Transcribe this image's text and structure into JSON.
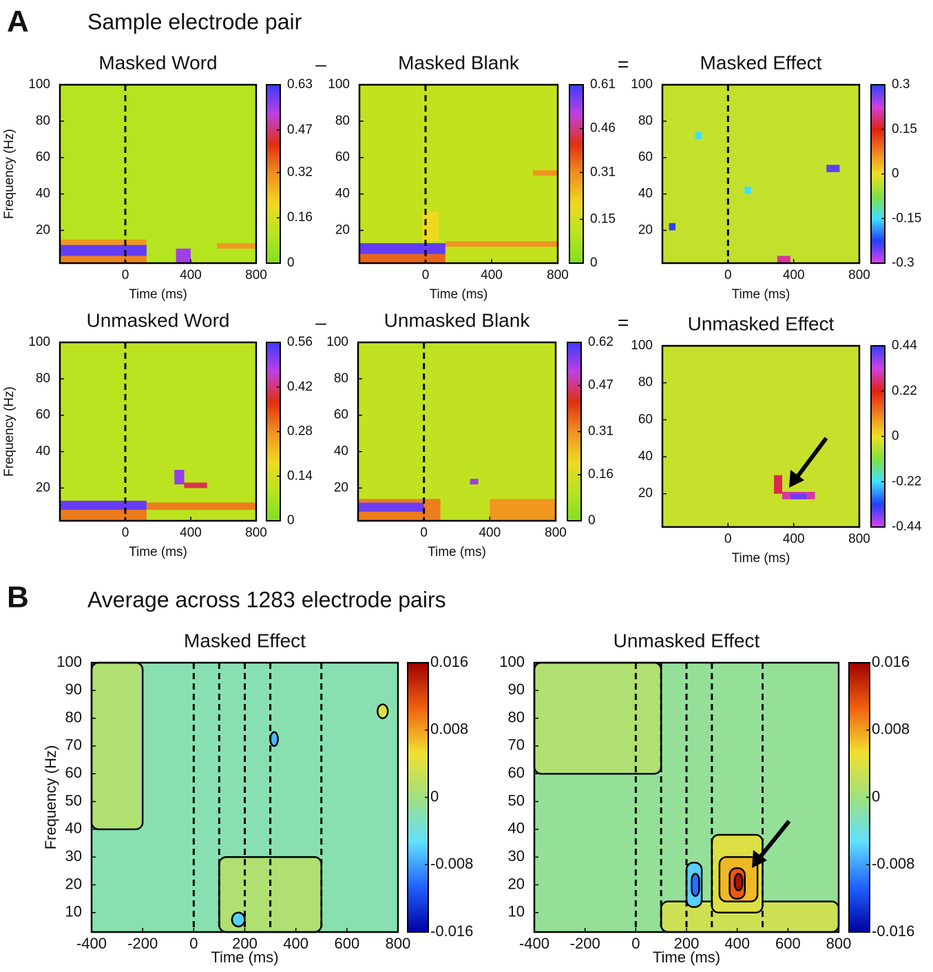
{
  "panels": [
    {
      "label": "A",
      "title": "Sample electrode pair"
    },
    {
      "label": "B",
      "title": "Average across 1283 electrode pairs"
    }
  ],
  "operators": [
    "–",
    "=",
    "–",
    "="
  ],
  "chart_data": [
    {
      "type": "heatmap",
      "title": "Masked Word",
      "xlabel": "Time (ms)",
      "ylabel": "Frequency (Hz)",
      "xlim": [
        -400,
        800
      ],
      "ylim": [
        2,
        100
      ],
      "xticks": [
        0,
        400,
        800
      ],
      "yticks": [
        20,
        40,
        60,
        80,
        100
      ],
      "vlines": [
        0
      ],
      "colormap": [
        "#80e020",
        "#b8e420",
        "#f0d820",
        "#f09020",
        "#e03010",
        "#c040e0",
        "#3c3cff"
      ],
      "clim": [
        0,
        0.63
      ],
      "cticks": [
        0,
        0.16,
        0.32,
        0.47,
        0.63
      ],
      "background": 0.1,
      "regions": [
        {
          "t": [
            -400,
            130
          ],
          "f": [
            2,
            6
          ],
          "value": 0.33
        },
        {
          "t": [
            -400,
            130
          ],
          "f": [
            12,
            15
          ],
          "value": 0.3
        },
        {
          "t": [
            -400,
            130
          ],
          "f": [
            6,
            12
          ],
          "value": 0.6
        },
        {
          "t": [
            310,
            400
          ],
          "f": [
            2,
            10
          ],
          "value": 0.55
        },
        {
          "t": [
            560,
            800
          ],
          "f": [
            10,
            13
          ],
          "value": 0.3
        }
      ]
    },
    {
      "type": "heatmap",
      "title": "Masked Blank",
      "xlabel": "Time (ms)",
      "xlim": [
        -400,
        800
      ],
      "ylim": [
        2,
        100
      ],
      "xticks": [
        0,
        400,
        800
      ],
      "yticks": [
        20,
        40,
        60,
        80,
        100
      ],
      "vlines": [
        0
      ],
      "colormap": [
        "#80e020",
        "#b8e420",
        "#f0d820",
        "#f09020",
        "#e03010",
        "#c040e0",
        "#3c3cff"
      ],
      "clim": [
        0,
        0.61
      ],
      "cticks": [
        0,
        0.15,
        0.31,
        0.46,
        0.61
      ],
      "background": 0.12,
      "regions": [
        {
          "t": [
            -400,
            120
          ],
          "f": [
            2,
            7
          ],
          "value": 0.35
        },
        {
          "t": [
            120,
            800
          ],
          "f": [
            11,
            14
          ],
          "value": 0.3
        },
        {
          "t": [
            -400,
            120
          ],
          "f": [
            7,
            13
          ],
          "value": 0.58
        },
        {
          "t": [
            650,
            800
          ],
          "f": [
            50,
            53
          ],
          "value": 0.3
        },
        {
          "t": [
            -20,
            80
          ],
          "f": [
            14,
            30
          ],
          "value": 0.2
        }
      ]
    },
    {
      "type": "heatmap",
      "title": "Masked Effect",
      "xlabel": "Time (ms)",
      "xlim": [
        -400,
        800
      ],
      "ylim": [
        2,
        100
      ],
      "xticks": [
        0,
        400,
        800
      ],
      "yticks": [
        20,
        40,
        60,
        80,
        100
      ],
      "vlines": [
        0
      ],
      "colormap": [
        "#e040f0",
        "#2040ff",
        "#40e0ff",
        "#80e040",
        "#f0e020",
        "#f08020",
        "#e02010",
        "#d040e0",
        "#3040ff"
      ],
      "clim": [
        -0.3,
        0.3
      ],
      "cticks": [
        -0.3,
        -0.15,
        0,
        0.15,
        0.3
      ],
      "background": -0.03,
      "regions": [
        {
          "t": [
            600,
            680
          ],
          "f": [
            52,
            56
          ],
          "value": 0.28
        },
        {
          "t": [
            300,
            380
          ],
          "f": [
            2,
            6
          ],
          "value": 0.2
        },
        {
          "t": [
            -360,
            -320
          ],
          "f": [
            20,
            24
          ],
          "value": 0.3
        },
        {
          "t": [
            -200,
            -160
          ],
          "f": [
            70,
            74
          ],
          "value": -0.15
        },
        {
          "t": [
            100,
            140
          ],
          "f": [
            40,
            44
          ],
          "value": -0.15
        }
      ]
    },
    {
      "type": "heatmap",
      "title": "Unmasked Word",
      "xlabel": "Time (ms)",
      "ylabel": "Frequency (Hz)",
      "xlim": [
        -400,
        800
      ],
      "ylim": [
        2,
        100
      ],
      "xticks": [
        0,
        400,
        800
      ],
      "yticks": [
        20,
        40,
        60,
        80,
        100
      ],
      "vlines": [
        0
      ],
      "colormap": [
        "#80e020",
        "#b8e420",
        "#f0d820",
        "#f09020",
        "#e03010",
        "#c040e0",
        "#3c3cff"
      ],
      "clim": [
        0,
        0.56
      ],
      "cticks": [
        0,
        0.14,
        0.28,
        0.42,
        0.56
      ],
      "background": 0.1,
      "regions": [
        {
          "t": [
            -400,
            130
          ],
          "f": [
            2,
            8
          ],
          "value": 0.3
        },
        {
          "t": [
            130,
            800
          ],
          "f": [
            8,
            12
          ],
          "value": 0.3
        },
        {
          "t": [
            -400,
            130
          ],
          "f": [
            8,
            13
          ],
          "value": 0.53
        },
        {
          "t": [
            300,
            360
          ],
          "f": [
            22,
            30
          ],
          "value": 0.5
        },
        {
          "t": [
            360,
            500
          ],
          "f": [
            20,
            23
          ],
          "value": 0.4
        }
      ]
    },
    {
      "type": "heatmap",
      "title": "Unmasked Blank",
      "xlabel": "Time (ms)",
      "xlim": [
        -400,
        800
      ],
      "ylim": [
        2,
        100
      ],
      "xticks": [
        0,
        400,
        800
      ],
      "yticks": [
        20,
        40,
        60,
        80,
        100
      ],
      "vlines": [
        0
      ],
      "colormap": [
        "#80e020",
        "#b8e420",
        "#f0d820",
        "#f09020",
        "#e03010",
        "#c040e0",
        "#3c3cff"
      ],
      "clim": [
        0,
        0.62
      ],
      "cticks": [
        0,
        0.16,
        0.31,
        0.47,
        0.62
      ],
      "background": 0.12,
      "regions": [
        {
          "t": [
            -400,
            100
          ],
          "f": [
            2,
            14
          ],
          "value": 0.33
        },
        {
          "t": [
            -400,
            0
          ],
          "f": [
            7,
            12
          ],
          "value": 0.58
        },
        {
          "t": [
            400,
            800
          ],
          "f": [
            2,
            14
          ],
          "value": 0.3
        },
        {
          "t": [
            280,
            330
          ],
          "f": [
            22,
            25
          ],
          "value": 0.55
        }
      ]
    },
    {
      "type": "heatmap",
      "title": "Unmasked Effect",
      "xlabel": "Time (ms)",
      "xlim": [
        -400,
        800
      ],
      "ylim": [
        2,
        100
      ],
      "xticks": [
        0,
        400,
        800
      ],
      "yticks": [
        20,
        40,
        60,
        80,
        100
      ],
      "colormap": [
        "#e040f0",
        "#2040ff",
        "#40e0ff",
        "#80e040",
        "#f0e020",
        "#f08020",
        "#e02010",
        "#d040e0",
        "#3040ff"
      ],
      "clim": [
        -0.44,
        0.44
      ],
      "cticks": [
        -0.44,
        -0.22,
        0,
        0.22,
        0.44
      ],
      "background": -0.04,
      "regions": [
        {
          "t": [
            280,
            330
          ],
          "f": [
            20,
            30
          ],
          "value": 0.25
        },
        {
          "t": [
            330,
            530
          ],
          "f": [
            17,
            21
          ],
          "value": 0.3
        },
        {
          "t": [
            380,
            480
          ],
          "f": [
            17,
            20
          ],
          "value": 0.4
        }
      ]
    },
    {
      "type": "contour",
      "title": "Masked Effect",
      "xlabel": "Time (ms)",
      "ylabel": "Frequency (Hz)",
      "xlim": [
        -400,
        800
      ],
      "ylim": [
        3,
        100
      ],
      "xticks": [
        -400,
        -200,
        0,
        200,
        400,
        600,
        800
      ],
      "yticks": [
        10,
        20,
        30,
        40,
        50,
        60,
        70,
        80,
        90,
        100
      ],
      "vlines": [
        0,
        100,
        200,
        300,
        500
      ],
      "colormap": [
        "#0000a0",
        "#2060ff",
        "#60e0ff",
        "#a0e080",
        "#f0e030",
        "#f06010",
        "#a00000"
      ],
      "clim": [
        -0.016,
        0.016
      ],
      "cticks": [
        -0.016,
        -0.008,
        0,
        0.008,
        0.016
      ],
      "background": -0.002,
      "regions": [
        {
          "t": [
            100,
            500
          ],
          "f": [
            3,
            30
          ],
          "value": 0.001
        },
        {
          "t": [
            -400,
            -200
          ],
          "f": [
            40,
            100
          ],
          "value": 0.001
        },
        {
          "t": [
            150,
            200
          ],
          "f": [
            5,
            10
          ],
          "value": -0.006
        },
        {
          "t": [
            300,
            330
          ],
          "f": [
            70,
            75
          ],
          "value": -0.007
        },
        {
          "t": [
            720,
            760
          ],
          "f": [
            80,
            85
          ],
          "value": 0.004
        }
      ]
    },
    {
      "type": "contour",
      "title": "Unmasked Effect",
      "xlabel": "Time (ms)",
      "xlim": [
        -400,
        800
      ],
      "ylim": [
        3,
        100
      ],
      "xticks": [
        -400,
        -200,
        0,
        200,
        400,
        600,
        800
      ],
      "yticks": [
        10,
        20,
        30,
        40,
        50,
        60,
        70,
        80,
        90,
        100
      ],
      "vlines": [
        0,
        100,
        200,
        300,
        500
      ],
      "colormap": [
        "#0000a0",
        "#2060ff",
        "#60e0ff",
        "#a0e080",
        "#f0e030",
        "#f06010",
        "#a00000"
      ],
      "clim": [
        -0.016,
        0.016
      ],
      "cticks": [
        -0.016,
        -0.008,
        0,
        0.008,
        0.016
      ],
      "background": -0.001,
      "regions": [
        {
          "t": [
            -400,
            100
          ],
          "f": [
            60,
            100
          ],
          "value": 0.001
        },
        {
          "t": [
            100,
            800
          ],
          "f": [
            3,
            14
          ],
          "value": 0.003
        },
        {
          "t": [
            300,
            500
          ],
          "f": [
            10,
            38
          ],
          "value": 0.004
        },
        {
          "t": [
            330,
            480
          ],
          "f": [
            14,
            30
          ],
          "value": 0.007
        },
        {
          "t": [
            370,
            430
          ],
          "f": [
            15,
            26
          ],
          "value": 0.011
        },
        {
          "t": [
            390,
            420
          ],
          "f": [
            18,
            24
          ],
          "value": 0.015
        },
        {
          "t": [
            200,
            260
          ],
          "f": [
            12,
            28
          ],
          "value": -0.006
        },
        {
          "t": [
            220,
            250
          ],
          "f": [
            16,
            24
          ],
          "value": -0.01
        }
      ]
    }
  ]
}
